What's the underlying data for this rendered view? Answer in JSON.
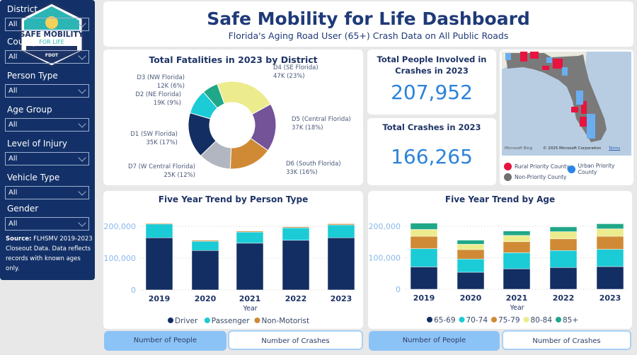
{
  "logo": {
    "text_line1": "SAFE MOBILITY",
    "text_line2": "FOR LIFE",
    "agency": "FDOT"
  },
  "header": {
    "title": "Safe Mobility for Life Dashboard",
    "subtitle": "Florida's Aging Road User (65+) Crash Data on All Public Roads"
  },
  "filters": [
    {
      "label": "District",
      "value": "All"
    },
    {
      "label": "County",
      "value": "All"
    },
    {
      "label": "Person Type",
      "value": "All"
    },
    {
      "label": "Age Group",
      "value": "All"
    },
    {
      "label": "Level of Injury",
      "value": "All"
    },
    {
      "label": "Vehicle Type",
      "value": "All"
    },
    {
      "label": "Gender",
      "value": "All"
    }
  ],
  "source": {
    "label": "Source:",
    "text": "FLHSMV 2019-2023 Closeout Data. Data reflects records with known ages only."
  },
  "kpis": {
    "people_title": "Total People Involved in Crashes in 2023",
    "people_value": "207,952",
    "crashes_title": "Total Crashes in 2023",
    "crashes_value": "166,265"
  },
  "map": {
    "attribution_brand": "Microsoft Bing",
    "copyright": "© 2025 Microsoft Corporation",
    "terms": "Terms",
    "legend": [
      {
        "label": "Rural Priority County",
        "color": "#e8133f"
      },
      {
        "label": "Urban Priority County",
        "color": "#2b86e8"
      },
      {
        "label": "Non-Priority County",
        "color": "#707070"
      }
    ]
  },
  "toggles": {
    "people": "Number of People",
    "crashes": "Number of Crashes"
  },
  "chart_data": [
    {
      "type": "pie",
      "title": "Total Fatalities in 2023 by District",
      "donut": true,
      "slices": [
        {
          "name": "D4 (SE Florida)",
          "value": 47,
          "label": "47K (23%)",
          "color": "#ecec8e"
        },
        {
          "name": "D5 (Central Florida)",
          "value": 37,
          "label": "37K (18%)",
          "color": "#745399"
        },
        {
          "name": "D6 (South Florida)",
          "value": 33,
          "label": "33K (16%)",
          "color": "#d08a35"
        },
        {
          "name": "D7 (W Central Florida)",
          "value": 25,
          "label": "25K (12%)",
          "color": "#b2b6c0"
        },
        {
          "name": "D1 (SW Florida)",
          "value": 35,
          "label": "35K (17%)",
          "color": "#132e62"
        },
        {
          "name": "D2 (NE Florida)",
          "value": 19,
          "label": "19K (9%)",
          "color": "#1bcbd6"
        },
        {
          "name": "D3 (NW Florida)",
          "value": 12,
          "label": "12K (6%)",
          "color": "#1fa888"
        }
      ],
      "units": "K"
    },
    {
      "type": "bar",
      "stacked": true,
      "title": "Five Year Trend by Person Type",
      "xlabel": "Year",
      "ylabel": "",
      "categories": [
        "2019",
        "2020",
        "2021",
        "2022",
        "2023"
      ],
      "ylim": [
        0,
        200000
      ],
      "yticks": [
        "0",
        "100,000",
        "200,000"
      ],
      "grid": true,
      "legend": "bottom",
      "series": [
        {
          "name": "Driver",
          "color": "#132e62",
          "values": [
            164000,
            124000,
            147000,
            156000,
            164000
          ]
        },
        {
          "name": "Passenger",
          "color": "#1bcbd6",
          "values": [
            43000,
            29000,
            35000,
            39000,
            40500
          ]
        },
        {
          "name": "Non-Motorist",
          "color": "#d08a35",
          "values": [
            2500,
            3000,
            3000,
            3000,
            3500
          ]
        }
      ]
    },
    {
      "type": "bar",
      "stacked": true,
      "title": "Five Year Trend by Age",
      "xlabel": "Year",
      "ylabel": "",
      "categories": [
        "2019",
        "2020",
        "2021",
        "2022",
        "2023"
      ],
      "ylim": [
        0,
        200000
      ],
      "yticks": [
        "0",
        "100,000",
        "200,000"
      ],
      "grid": true,
      "legend": "bottom",
      "series": [
        {
          "name": "65-69",
          "color": "#132e62",
          "values": [
            71000,
            54000,
            65000,
            69000,
            72000
          ]
        },
        {
          "name": "70-74",
          "color": "#1bcbd6",
          "values": [
            58000,
            42000,
            51000,
            54000,
            55000
          ]
        },
        {
          "name": "75-79",
          "color": "#d08a35",
          "values": [
            39000,
            30000,
            35000,
            37000,
            41000
          ]
        },
        {
          "name": "80-84",
          "color": "#ecec8e",
          "values": [
            22000,
            17000,
            20000,
            23000,
            24000
          ]
        },
        {
          "name": "85+",
          "color": "#1fa888",
          "values": [
            20000,
            13000,
            14000,
            15000,
            16000
          ]
        }
      ]
    }
  ]
}
